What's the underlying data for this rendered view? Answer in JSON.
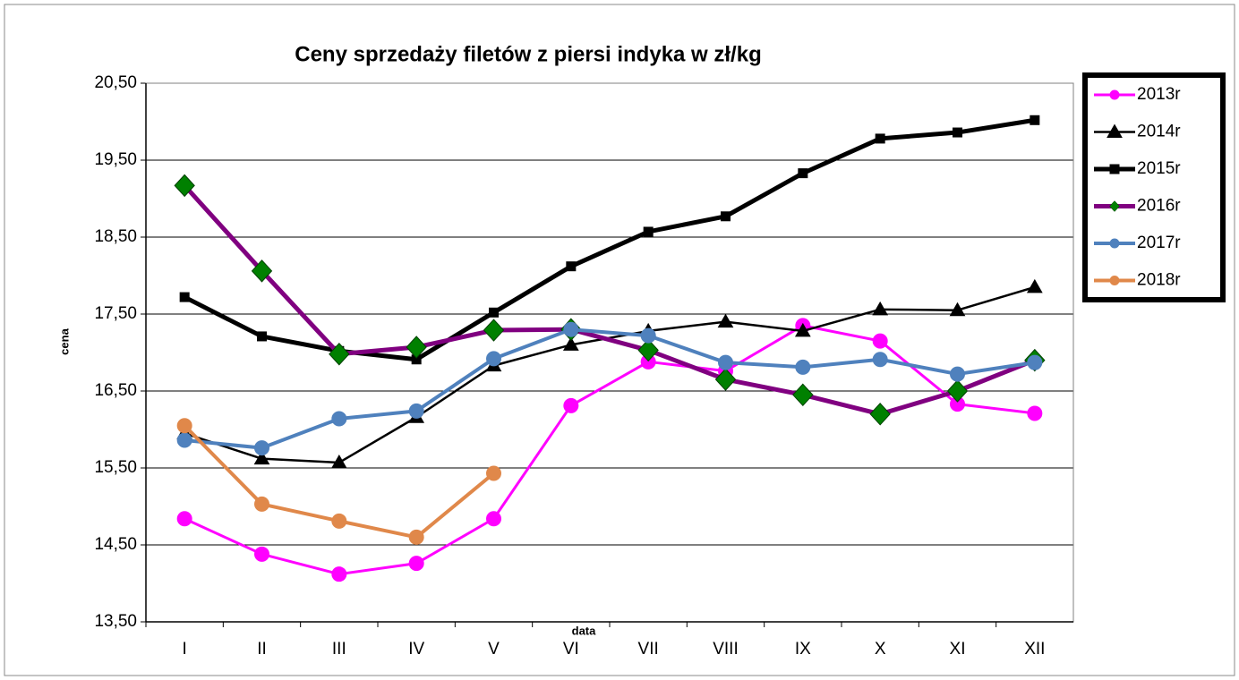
{
  "chart_data": {
    "type": "line",
    "title": "Ceny sprzedaży filetów z  piersi indyka w zł/kg",
    "x_label": "data",
    "y_label": "cena",
    "categories": [
      "I",
      "II",
      "III",
      "IV",
      "V",
      "VI",
      "VII",
      "VIII",
      "IX",
      "X",
      "XI",
      "XII"
    ],
    "ylim": [
      13.5,
      20.5
    ],
    "yticks": [
      {
        "value": 13.5,
        "label": "13,50"
      },
      {
        "value": 14.5,
        "label": "14,50"
      },
      {
        "value": 15.5,
        "label": "15,50"
      },
      {
        "value": 16.5,
        "label": "16,50"
      },
      {
        "value": 17.5,
        "label": "17,50"
      },
      {
        "value": 18.5,
        "label": "18,50"
      },
      {
        "value": 19.5,
        "label": "19,50"
      },
      {
        "value": 20.5,
        "label": "20,50"
      }
    ],
    "grid": true,
    "legend": "right",
    "series": [
      {
        "name": "2013r",
        "color": "#ff00ff",
        "marker": "circle",
        "marker_color": "#ff00ff",
        "line_width": 3,
        "values": [
          14.84,
          14.38,
          14.12,
          14.26,
          14.84,
          16.31,
          16.88,
          16.76,
          17.35,
          17.15,
          16.33,
          16.21
        ]
      },
      {
        "name": "2014r",
        "color": "#000000",
        "marker": "triangle",
        "marker_color": "#000000",
        "line_width": 2.5,
        "values": [
          15.95,
          15.62,
          15.57,
          16.16,
          16.83,
          17.1,
          17.28,
          17.4,
          17.28,
          17.56,
          17.55,
          17.85
        ]
      },
      {
        "name": "2015r",
        "color": "#000000",
        "marker": "square",
        "marker_color": "#000000",
        "line_width": 5,
        "values": [
          17.72,
          17.21,
          17.02,
          16.91,
          17.52,
          18.12,
          18.57,
          18.77,
          19.33,
          19.78,
          19.86,
          20.02
        ]
      },
      {
        "name": "2016r",
        "color": "#800080",
        "marker": "diamond",
        "marker_color": "#008000",
        "line_width": 5,
        "values": [
          19.17,
          18.06,
          16.98,
          17.07,
          17.29,
          17.3,
          17.03,
          16.65,
          16.45,
          16.2,
          16.5,
          16.9
        ]
      },
      {
        "name": "2017r",
        "color": "#4f81bd",
        "marker": "circle",
        "marker_color": "#4f81bd",
        "line_width": 4,
        "values": [
          15.86,
          15.76,
          16.14,
          16.24,
          16.92,
          17.3,
          17.22,
          16.87,
          16.81,
          16.91,
          16.72,
          16.87
        ]
      },
      {
        "name": "2018r",
        "color": "#e0884a",
        "marker": "circle",
        "marker_color": "#e0884a",
        "line_width": 4,
        "values": [
          16.05,
          15.03,
          14.81,
          14.6,
          15.43,
          null,
          null,
          null,
          null,
          null,
          null,
          null
        ]
      }
    ]
  }
}
